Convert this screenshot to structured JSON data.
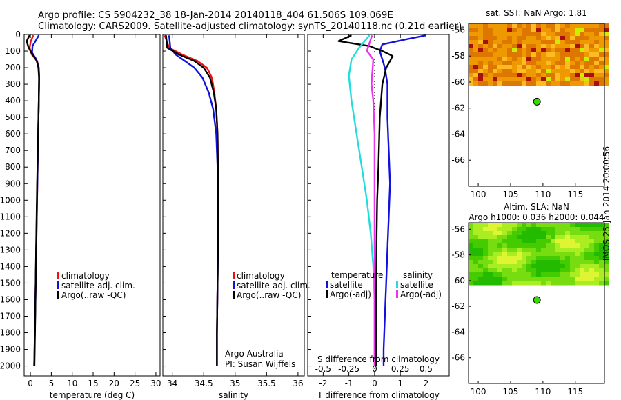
{
  "header": {
    "line1": "Argo profile: CS 5904232_38 18-Jan-2014 20140118_404 61.506S 109.069E",
    "line2": "Climatology: CARS2009. Satellite-adjusted climatology: synTS_20140118.nc (0.21d earlier)"
  },
  "colors": {
    "climatology": "#ee1111",
    "satellite": "#1111dd",
    "argo": "#000000",
    "salinity_satellite": "#22dddd",
    "salinity_argo": "#ee33ee",
    "argo_marker": "#33dd00"
  },
  "chart_data": [
    {
      "id": "temperature",
      "type": "line",
      "xlabel": "temperature (deg C)",
      "ylabel": "",
      "xlim": [
        -1.5,
        31
      ],
      "ylim": [
        2060,
        0
      ],
      "xticks": [
        0,
        5,
        10,
        15,
        20,
        25,
        30
      ],
      "xtick_labels": [
        "0",
        "5",
        "10",
        "15",
        "20",
        "25",
        "30"
      ],
      "yticks": [
        0,
        100,
        200,
        300,
        400,
        500,
        600,
        700,
        800,
        900,
        1000,
        1100,
        1200,
        1300,
        1400,
        1500,
        1600,
        1700,
        1800,
        1900,
        2000
      ],
      "ytick_labels": [
        "0",
        "100",
        "200",
        "300",
        "400",
        "500",
        "600",
        "700",
        "800",
        "900",
        "1000",
        "1100",
        "1200",
        "1300",
        "1400",
        "1500",
        "1600",
        "1700",
        "1800",
        "1900",
        "2000"
      ],
      "legend": [
        "climatology",
        "satellite-adj. clim.",
        "Argo(..raw -QC)"
      ],
      "legend_placement": "lower-right",
      "series": [
        {
          "name": "climatology",
          "color_key": "climatology",
          "x": [
            0.7,
            0.1,
            -0.2,
            0.3,
            1.6,
            2.0,
            2.1,
            2.0,
            1.85,
            1.65,
            1.45,
            1.25,
            1.05,
            0.9
          ],
          "y": [
            5,
            40,
            80,
            120,
            160,
            200,
            260,
            400,
            600,
            900,
            1200,
            1500,
            1800,
            2000
          ]
        },
        {
          "name": "satellite-adj. clim.",
          "color_key": "satellite",
          "x": [
            2.0,
            1.2,
            0.5,
            0.4,
            1.4,
            2.0,
            2.1,
            2.0,
            1.85,
            1.65,
            1.45,
            1.25,
            1.05,
            0.9
          ],
          "y": [
            5,
            40,
            70,
            110,
            150,
            200,
            260,
            400,
            600,
            900,
            1200,
            1500,
            1800,
            2000
          ]
        },
        {
          "name": "Argo(..raw -QC)",
          "color_key": "argo",
          "x": [
            -0.2,
            -0.9,
            -0.5,
            0.1,
            0.8,
            1.5,
            1.9,
            2.05,
            2.0,
            1.85,
            1.6,
            1.35,
            1.15,
            0.95
          ],
          "y": [
            5,
            40,
            75,
            105,
            130,
            160,
            200,
            260,
            400,
            600,
            900,
            1300,
            1700,
            2000
          ]
        }
      ]
    },
    {
      "id": "salinity",
      "type": "line",
      "xlabel": "salinity",
      "ylabel": "",
      "xlim": [
        33.85,
        36.1
      ],
      "ylim": [
        2060,
        0
      ],
      "xticks": [
        34,
        34.5,
        35,
        35.5,
        36
      ],
      "xtick_labels": [
        "34",
        "34.5",
        "35",
        "35.5",
        "36"
      ],
      "legend": [
        "climatology",
        "satellite-adj. clim.",
        "Argo(..raw -QC)"
      ],
      "legend_placement": "lower-right",
      "annotations": [
        "Argo Australia",
        "PI: Susan Wijffels"
      ],
      "series": [
        {
          "name": "climatology",
          "color_key": "climatology",
          "x": [
            33.88,
            33.95,
            34.15,
            34.4,
            34.55,
            34.63,
            34.67,
            34.7,
            34.72,
            34.73,
            34.73,
            34.72,
            34.71,
            34.71
          ],
          "y": [
            5,
            80,
            120,
            160,
            200,
            260,
            350,
            450,
            600,
            900,
            1200,
            1500,
            1800,
            2000
          ]
        },
        {
          "name": "satellite-adj. clim.",
          "color_key": "satellite",
          "x": [
            33.95,
            33.97,
            34.05,
            34.2,
            34.35,
            34.48,
            34.58,
            34.65,
            34.7,
            34.73,
            34.73,
            34.72,
            34.71,
            34.71
          ],
          "y": [
            5,
            80,
            120,
            160,
            200,
            260,
            350,
            450,
            600,
            900,
            1200,
            1500,
            1800,
            2000
          ]
        },
        {
          "name": "Argo(..raw -QC)",
          "color_key": "argo",
          "x": [
            33.9,
            33.92,
            34.1,
            34.35,
            34.5,
            34.6,
            34.66,
            34.7,
            34.72,
            34.73,
            34.73,
            34.72,
            34.71,
            34.71
          ],
          "y": [
            5,
            80,
            120,
            160,
            200,
            260,
            350,
            450,
            600,
            900,
            1200,
            1500,
            1800,
            2000
          ]
        }
      ]
    },
    {
      "id": "difference",
      "type": "line",
      "xlabel": "T difference from climatology",
      "top_xlabel": "S difference from climatology",
      "xlim": [
        -2.6,
        2.9
      ],
      "ylim": [
        2060,
        0
      ],
      "xticks": [
        -2,
        -1,
        0,
        1,
        2
      ],
      "xtick_labels": [
        "-2",
        "-1",
        "0",
        "1",
        "2"
      ],
      "top_ticks": [
        "-0.5",
        "-0.25",
        "0",
        "0.25",
        "0.5"
      ],
      "legend_groups": [
        {
          "title": "temperature",
          "items": [
            "satellite",
            "Argo(-adj)"
          ]
        },
        {
          "title": "salinity",
          "items": [
            "satellite",
            "Argo(-adj)"
          ]
        }
      ],
      "legend_placement": "lower-center",
      "series": [
        {
          "name": "temperature satellite",
          "color_key": "satellite",
          "x": [
            2.0,
            1.2,
            0.3,
            0.2,
            0.3,
            0.4,
            0.5,
            0.5,
            0.55,
            0.6,
            0.55,
            0.5,
            0.45,
            0.4,
            0.35,
            0.35
          ],
          "y": [
            5,
            30,
            60,
            100,
            150,
            200,
            300,
            500,
            700,
            900,
            1100,
            1300,
            1500,
            1700,
            1900,
            2000
          ]
        },
        {
          "name": "temperature Argo(-adj)",
          "color_key": "argo",
          "x": [
            -0.9,
            -1.4,
            -0.2,
            0.3,
            0.7,
            0.6,
            0.45,
            0.3,
            0.2,
            0.15,
            0.1,
            0.08,
            0.07,
            0.06,
            0.05,
            0.05
          ],
          "y": [
            5,
            40,
            70,
            100,
            130,
            160,
            200,
            300,
            500,
            800,
            1000,
            1200,
            1400,
            1600,
            1800,
            2000
          ]
        },
        {
          "name": "salinity satellite",
          "color_key": "salinity_satellite",
          "x": [
            -0.2,
            -0.6,
            -0.9,
            -1.0,
            -0.9,
            -0.7,
            -0.5,
            -0.3,
            -0.15,
            -0.05,
            0.0,
            0.0,
            0.0,
            0.0
          ],
          "y": [
            5,
            80,
            150,
            250,
            400,
            600,
            800,
            1000,
            1200,
            1400,
            1600,
            1800,
            1900,
            2000
          ]
        },
        {
          "name": "salinity Argo(-adj)",
          "color_key": "salinity_argo",
          "x": [
            -0.1,
            -0.3,
            -0.05,
            -0.1,
            -0.12,
            -0.05,
            0.0,
            0.0,
            0.0,
            0.0
          ],
          "y": [
            5,
            100,
            150,
            250,
            300,
            400,
            600,
            1000,
            1500,
            2000
          ]
        }
      ]
    },
    {
      "id": "sst_map",
      "type": "heatmap",
      "title": "sat. SST: NaN Argo: 1.81",
      "xlim": [
        98.5,
        119.5
      ],
      "ylim": [
        -68,
        -55.5
      ],
      "xticks": [
        100,
        105,
        110,
        115
      ],
      "xtick_labels": [
        "100",
        "105",
        "110",
        "115"
      ],
      "yticks": [
        -56,
        -58,
        -60,
        -62,
        -64,
        -66
      ],
      "ytick_labels": [
        "-56",
        "-58",
        "-60",
        "-62",
        "-64",
        "-66"
      ],
      "data_lat_range": [
        -60.2,
        -55.5
      ],
      "argo_position": {
        "lon": 109.069,
        "lat": -61.506
      }
    },
    {
      "id": "sla_map",
      "type": "heatmap",
      "title": "Altim. SLA: NaN",
      "subtitle": "Argo h1000: 0.036 h2000: 0.044",
      "xlim": [
        98.5,
        119.5
      ],
      "ylim": [
        -68,
        -55.5
      ],
      "xticks": [
        100,
        105,
        110,
        115
      ],
      "xtick_labels": [
        "100",
        "105",
        "110",
        "115"
      ],
      "yticks": [
        -56,
        -58,
        -60,
        -62,
        -64,
        -66
      ],
      "ytick_labels": [
        "-56",
        "-58",
        "-60",
        "-62",
        "-64",
        "-66"
      ],
      "data_lat_range": [
        -60.2,
        -55.5
      ],
      "argo_position": {
        "lon": 109.069,
        "lat": -61.506
      }
    }
  ],
  "side_note": "IMOS 25-Jan-2014 20:00:56"
}
